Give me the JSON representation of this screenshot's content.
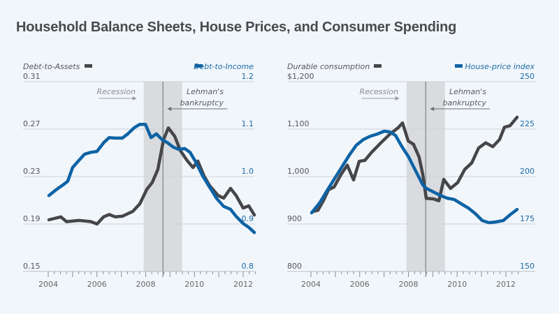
{
  "title": "Household Balance Sheets, House Prices, and Consumer Spending",
  "colors": {
    "gray_series": "#464649",
    "blue_series": "#0d63a5",
    "recession_band": "#d9dbdf",
    "gridline": "#cfd3d8",
    "background": "#f1f6fb"
  },
  "chart_data": [
    {
      "type": "line",
      "title": "",
      "x_ticks": [
        "2004",
        "2006",
        "2008",
        "2010",
        "2012"
      ],
      "xlim": [
        2004,
        2012.6
      ],
      "left_axis": {
        "label": "Debt-to-Assets",
        "ticks": [
          "0.31",
          "0.27",
          "0.23",
          "0.19",
          "0.15"
        ],
        "ylim": [
          0.15,
          0.31
        ]
      },
      "right_axis": {
        "label": "Debt-to-Income",
        "ticks": [
          "1.2",
          "1.1",
          "1.0",
          "0.9",
          "0.8"
        ],
        "ylim": [
          0.8,
          1.2
        ]
      },
      "grid": true,
      "annotations": {
        "recession_label": "Recession",
        "lehman_label_1": "Lehman's",
        "lehman_label_2": "bankruptcy",
        "recession_start": 2007.92,
        "recession_end": 2009.5,
        "lehman_date": 2008.71
      },
      "series": [
        {
          "name": "Debt-to-Assets",
          "axis": "left",
          "points": [
            [
              2004.03,
              0.1935
            ],
            [
              2004.52,
              0.196
            ],
            [
              2004.75,
              0.192
            ],
            [
              2005.26,
              0.193
            ],
            [
              2005.75,
              0.192
            ],
            [
              2006.0,
              0.19
            ],
            [
              2006.27,
              0.196
            ],
            [
              2006.5,
              0.198
            ],
            [
              2006.75,
              0.196
            ],
            [
              2007.04,
              0.1965
            ],
            [
              2007.47,
              0.2006
            ],
            [
              2007.76,
              0.207
            ],
            [
              2008.04,
              0.219
            ],
            [
              2008.27,
              0.225
            ],
            [
              2008.5,
              0.236
            ],
            [
              2008.73,
              0.261
            ],
            [
              2008.93,
              0.271
            ],
            [
              2009.19,
              0.264
            ],
            [
              2009.42,
              0.252
            ],
            [
              2009.7,
              0.2435
            ],
            [
              2009.94,
              0.2376
            ],
            [
              2010.14,
              0.243
            ],
            [
              2010.39,
              0.2306
            ],
            [
              2010.62,
              0.2224
            ],
            [
              2010.97,
              0.214
            ],
            [
              2011.2,
              0.2118
            ],
            [
              2011.48,
              0.22
            ],
            [
              2011.71,
              0.214
            ],
            [
              2012.0,
              0.2035
            ],
            [
              2012.23,
              0.2053
            ],
            [
              2012.46,
              0.1976
            ]
          ]
        },
        {
          "name": "Debt-to-Income",
          "axis": "right",
          "points": [
            [
              2004.03,
              0.96
            ],
            [
              2004.32,
              0.972
            ],
            [
              2004.6,
              0.982
            ],
            [
              2004.8,
              0.99
            ],
            [
              2005.0,
              1.019
            ],
            [
              2005.26,
              1.034
            ],
            [
              2005.49,
              1.047
            ],
            [
              2005.75,
              1.051
            ],
            [
              2006.0,
              1.053
            ],
            [
              2006.27,
              1.071
            ],
            [
              2006.5,
              1.082
            ],
            [
              2006.75,
              1.081
            ],
            [
              2007.04,
              1.081
            ],
            [
              2007.27,
              1.09
            ],
            [
              2007.53,
              1.103
            ],
            [
              2007.76,
              1.11
            ],
            [
              2007.99,
              1.11
            ],
            [
              2008.22,
              1.082
            ],
            [
              2008.44,
              1.09
            ],
            [
              2008.67,
              1.078
            ],
            [
              2008.9,
              1.071
            ],
            [
              2009.13,
              1.062
            ],
            [
              2009.36,
              1.057
            ],
            [
              2009.6,
              1.059
            ],
            [
              2009.82,
              1.051
            ],
            [
              2010.05,
              1.031
            ],
            [
              2010.34,
              1.001
            ],
            [
              2010.62,
              0.978
            ],
            [
              2010.91,
              0.954
            ],
            [
              2011.2,
              0.937
            ],
            [
              2011.48,
              0.931
            ],
            [
              2011.71,
              0.916
            ],
            [
              2012.0,
              0.901
            ],
            [
              2012.23,
              0.893
            ],
            [
              2012.46,
              0.882
            ]
          ]
        }
      ]
    },
    {
      "type": "line",
      "title": "",
      "x_ticks": [
        "2004",
        "2006",
        "2008",
        "2010",
        "2012"
      ],
      "xlim": [
        2004,
        2012.6
      ],
      "left_axis": {
        "label": "Durable consumption",
        "ticks": [
          "$1,200",
          "1,100",
          "1,000",
          "900",
          "800"
        ],
        "ylim": [
          800,
          1200
        ]
      },
      "right_axis": {
        "label": "House-price index",
        "ticks": [
          "250",
          "225",
          "200",
          "175",
          "150"
        ],
        "ylim": [
          150,
          250
        ]
      },
      "grid": true,
      "annotations": {
        "recession_label": "Recession",
        "lehman_label_1": "Lehman's",
        "lehman_label_2": "bankruptcy",
        "recession_start": 2007.92,
        "recession_end": 2009.5,
        "lehman_date": 2008.71
      },
      "series": [
        {
          "name": "Durable consumption",
          "axis": "left",
          "points": [
            [
              2004.06,
              926
            ],
            [
              2004.29,
              929
            ],
            [
              2004.52,
              950
            ],
            [
              2004.72,
              972
            ],
            [
              2004.95,
              978
            ],
            [
              2005.23,
              1004
            ],
            [
              2005.49,
              1024
            ],
            [
              2005.75,
              993
            ],
            [
              2005.98,
              1032
            ],
            [
              2006.21,
              1034
            ],
            [
              2006.49,
              1051
            ],
            [
              2006.87,
              1071
            ],
            [
              2007.21,
              1088
            ],
            [
              2007.58,
              1103
            ],
            [
              2007.76,
              1113
            ],
            [
              2007.99,
              1075
            ],
            [
              2008.21,
              1068
            ],
            [
              2008.44,
              1041
            ],
            [
              2008.59,
              1004
            ],
            [
              2008.73,
              954
            ],
            [
              2009.02,
              953
            ],
            [
              2009.25,
              949
            ],
            [
              2009.45,
              994
            ],
            [
              2009.73,
              975
            ],
            [
              2010.02,
              987
            ],
            [
              2010.31,
              1015
            ],
            [
              2010.6,
              1029
            ],
            [
              2010.88,
              1060
            ],
            [
              2011.17,
              1071
            ],
            [
              2011.46,
              1063
            ],
            [
              2011.74,
              1078
            ],
            [
              2011.94,
              1104
            ],
            [
              2012.17,
              1107
            ],
            [
              2012.46,
              1125
            ]
          ]
        },
        {
          "name": "House-price index",
          "axis": "right",
          "points": [
            [
              2004.03,
              180.9
            ],
            [
              2004.37,
              186.4
            ],
            [
              2004.72,
              193.8
            ],
            [
              2005.15,
              202.6
            ],
            [
              2005.58,
              211.4
            ],
            [
              2005.86,
              216.5
            ],
            [
              2006.15,
              219.5
            ],
            [
              2006.44,
              221.3
            ],
            [
              2006.72,
              222.4
            ],
            [
              2007.01,
              223.9
            ],
            [
              2007.24,
              223.5
            ],
            [
              2007.47,
              221.7
            ],
            [
              2007.73,
              215.8
            ],
            [
              2008.01,
              210.3
            ],
            [
              2008.3,
              202.9
            ],
            [
              2008.59,
              195.6
            ],
            [
              2008.73,
              193.8
            ],
            [
              2009.02,
              191.9
            ],
            [
              2009.3,
              190.1
            ],
            [
              2009.59,
              188.6
            ],
            [
              2009.88,
              187.9
            ],
            [
              2010.16,
              185.7
            ],
            [
              2010.45,
              183.5
            ],
            [
              2010.74,
              180.5
            ],
            [
              2011.03,
              176.8
            ],
            [
              2011.31,
              175.7
            ],
            [
              2011.6,
              176.1
            ],
            [
              2011.89,
              176.8
            ],
            [
              2012.17,
              179.8
            ],
            [
              2012.46,
              182.7
            ]
          ]
        }
      ]
    }
  ]
}
